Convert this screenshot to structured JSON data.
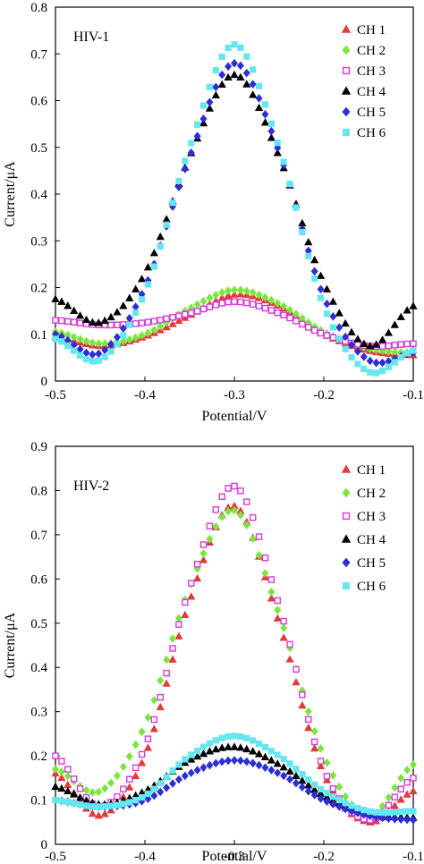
{
  "chart_data": [
    {
      "type": "scatter",
      "panel_label": "HIV-1",
      "xlabel": "Potential/V",
      "ylabel": "Current/μA",
      "xlim": [
        -0.5,
        -0.1
      ],
      "ylim": [
        0,
        0.8
      ],
      "xticks": [
        -0.5,
        -0.4,
        -0.3,
        -0.2,
        -0.1
      ],
      "yticks": [
        0,
        0.1,
        0.2,
        0.3,
        0.4,
        0.5,
        0.6,
        0.7,
        0.8
      ],
      "legend_position": "top-right",
      "series": [
        {
          "name": "CH 1",
          "marker": "triangle",
          "color": "#e23b3b",
          "x": [
            -0.5,
            -0.45,
            -0.4,
            -0.35,
            -0.3,
            -0.25,
            -0.2,
            -0.15,
            -0.1
          ],
          "y": [
            0.095,
            0.075,
            0.095,
            0.14,
            0.185,
            0.16,
            0.1,
            0.065,
            0.055
          ]
        },
        {
          "name": "CH 2",
          "marker": "diamond",
          "color": "#7be63d",
          "x": [
            -0.5,
            -0.45,
            -0.4,
            -0.35,
            -0.3,
            -0.25,
            -0.2,
            -0.15,
            -0.1
          ],
          "y": [
            0.105,
            0.08,
            0.1,
            0.155,
            0.195,
            0.165,
            0.105,
            0.07,
            0.06
          ]
        },
        {
          "name": "CH 3",
          "marker": "square-open",
          "color": "#d63ad8",
          "x": [
            -0.5,
            -0.45,
            -0.4,
            -0.35,
            -0.3,
            -0.25,
            -0.2,
            -0.15,
            -0.1
          ],
          "y": [
            0.13,
            0.12,
            0.125,
            0.145,
            0.17,
            0.145,
            0.1,
            0.075,
            0.08
          ]
        },
        {
          "name": "CH 4",
          "marker": "triangle",
          "color": "#000000",
          "x": [
            -0.5,
            -0.45,
            -0.4,
            -0.35,
            -0.3,
            -0.25,
            -0.2,
            -0.15,
            -0.1
          ],
          "y": [
            0.175,
            0.125,
            0.23,
            0.48,
            0.655,
            0.48,
            0.21,
            0.075,
            0.16
          ]
        },
        {
          "name": "CH 5",
          "marker": "diamond",
          "color": "#2c2ed6",
          "x": [
            -0.5,
            -0.45,
            -0.4,
            -0.35,
            -0.3,
            -0.25,
            -0.2,
            -0.15,
            -0.1
          ],
          "y": [
            0.1,
            0.06,
            0.2,
            0.48,
            0.68,
            0.49,
            0.18,
            0.045,
            0.06
          ]
        },
        {
          "name": "CH 6",
          "marker": "square",
          "color": "#66e6ee",
          "x": [
            -0.5,
            -0.45,
            -0.4,
            -0.35,
            -0.3,
            -0.25,
            -0.2,
            -0.15,
            -0.1
          ],
          "y": [
            0.09,
            0.045,
            0.19,
            0.5,
            0.72,
            0.5,
            0.16,
            0.02,
            0.065
          ]
        }
      ]
    },
    {
      "type": "scatter",
      "panel_label": "HIV-2",
      "xlabel": "Potential/V",
      "ylabel": "Current/μA",
      "xlim": [
        -0.5,
        -0.1
      ],
      "ylim": [
        0,
        0.9
      ],
      "xticks": [
        -0.5,
        -0.4,
        -0.3,
        -0.2,
        -0.1
      ],
      "yticks": [
        0,
        0.1,
        0.2,
        0.3,
        0.4,
        0.5,
        0.6,
        0.7,
        0.8,
        0.9
      ],
      "legend_position": "top-right",
      "series": [
        {
          "name": "CH 1",
          "marker": "triangle",
          "color": "#e23b3b",
          "x": [
            -0.5,
            -0.45,
            -0.4,
            -0.35,
            -0.3,
            -0.25,
            -0.2,
            -0.15,
            -0.1
          ],
          "y": [
            0.16,
            0.065,
            0.2,
            0.55,
            0.765,
            0.5,
            0.16,
            0.05,
            0.12
          ]
        },
        {
          "name": "CH 2",
          "marker": "diamond",
          "color": "#7be63d",
          "x": [
            -0.5,
            -0.45,
            -0.4,
            -0.35,
            -0.3,
            -0.25,
            -0.2,
            -0.15,
            -0.1
          ],
          "y": [
            0.17,
            0.12,
            0.27,
            0.58,
            0.755,
            0.52,
            0.2,
            0.065,
            0.18
          ]
        },
        {
          "name": "CH 3",
          "marker": "square-open",
          "color": "#d63ad8",
          "x": [
            -0.5,
            -0.45,
            -0.4,
            -0.35,
            -0.3,
            -0.25,
            -0.2,
            -0.15,
            -0.1
          ],
          "y": [
            0.2,
            0.085,
            0.22,
            0.58,
            0.81,
            0.54,
            0.17,
            0.055,
            0.15
          ]
        },
        {
          "name": "CH 4",
          "marker": "triangle",
          "color": "#000000",
          "x": [
            -0.5,
            -0.45,
            -0.4,
            -0.35,
            -0.3,
            -0.25,
            -0.2,
            -0.15,
            -0.1
          ],
          "y": [
            0.13,
            0.09,
            0.12,
            0.19,
            0.22,
            0.18,
            0.11,
            0.07,
            0.06
          ]
        },
        {
          "name": "CH 5",
          "marker": "diamond",
          "color": "#2c2ed6",
          "x": [
            -0.5,
            -0.45,
            -0.4,
            -0.35,
            -0.3,
            -0.25,
            -0.2,
            -0.15,
            -0.1
          ],
          "y": [
            0.1,
            0.085,
            0.1,
            0.16,
            0.19,
            0.16,
            0.1,
            0.065,
            0.055
          ]
        },
        {
          "name": "CH 6",
          "marker": "square",
          "color": "#66e6ee",
          "x": [
            -0.5,
            -0.45,
            -0.4,
            -0.35,
            -0.3,
            -0.25,
            -0.2,
            -0.15,
            -0.1
          ],
          "y": [
            0.1,
            0.085,
            0.11,
            0.2,
            0.245,
            0.2,
            0.12,
            0.075,
            0.075
          ]
        }
      ]
    }
  ]
}
